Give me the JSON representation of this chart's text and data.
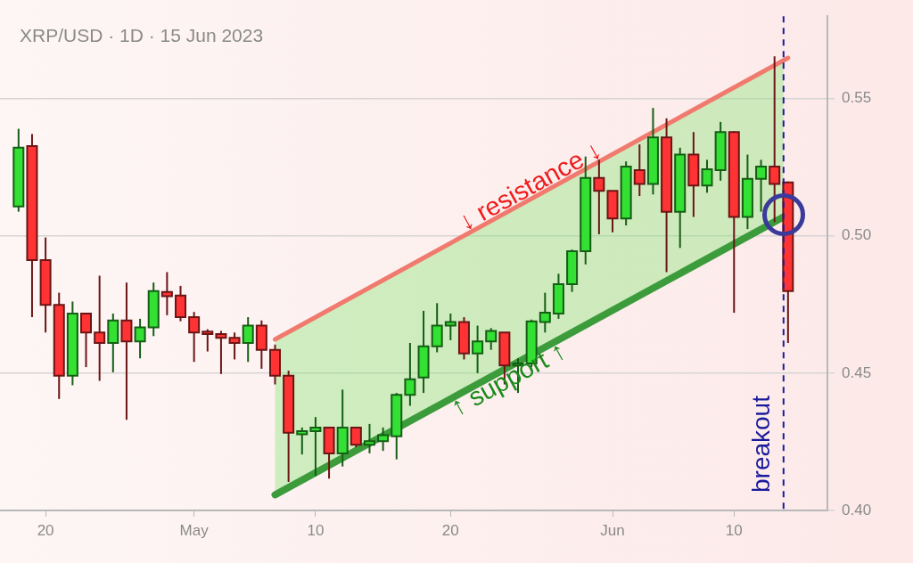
{
  "chart_data": {
    "type": "candlestick",
    "title": "XRP/USD · 1D · 15 Jun 2023",
    "x": [
      "2023-04-18",
      "2023-04-19",
      "2023-04-20",
      "2023-04-21",
      "2023-04-22",
      "2023-04-23",
      "2023-04-24",
      "2023-04-25",
      "2023-04-26",
      "2023-04-27",
      "2023-04-28",
      "2023-04-29",
      "2023-04-30",
      "2023-05-01",
      "2023-05-02",
      "2023-05-03",
      "2023-05-04",
      "2023-05-05",
      "2023-05-06",
      "2023-05-07",
      "2023-05-08",
      "2023-05-09",
      "2023-05-10",
      "2023-05-11",
      "2023-05-12",
      "2023-05-13",
      "2023-05-14",
      "2023-05-15",
      "2023-05-16",
      "2023-05-17",
      "2023-05-18",
      "2023-05-19",
      "2023-05-20",
      "2023-05-21",
      "2023-05-22",
      "2023-05-23",
      "2023-05-24",
      "2023-05-25",
      "2023-05-26",
      "2023-05-27",
      "2023-05-28",
      "2023-05-29",
      "2023-05-30",
      "2023-05-31",
      "2023-06-01",
      "2023-06-02",
      "2023-06-03",
      "2023-06-04",
      "2023-06-05",
      "2023-06-06",
      "2023-06-07",
      "2023-06-08",
      "2023-06-09",
      "2023-06-10",
      "2023-06-11",
      "2023-06-12",
      "2023-06-13",
      "2023-06-14"
    ],
    "ohlc": [
      [
        0.5107,
        0.539,
        0.5088,
        0.5321
      ],
      [
        0.5327,
        0.5371,
        0.4704,
        0.4912
      ],
      [
        0.4912,
        0.4994,
        0.4648,
        0.4749
      ],
      [
        0.4749,
        0.4793,
        0.4406,
        0.4491
      ],
      [
        0.4491,
        0.4761,
        0.4456,
        0.4717
      ],
      [
        0.4717,
        0.4717,
        0.4522,
        0.4648
      ],
      [
        0.4648,
        0.4855,
        0.4472,
        0.461
      ],
      [
        0.461,
        0.4717,
        0.4503,
        0.4692
      ],
      [
        0.4692,
        0.483,
        0.433,
        0.4616
      ],
      [
        0.4616,
        0.4698,
        0.4554,
        0.4667
      ],
      [
        0.4667,
        0.483,
        0.4635,
        0.4799
      ],
      [
        0.4796,
        0.4868,
        0.4711,
        0.478
      ],
      [
        0.4783,
        0.4818,
        0.4689,
        0.4704
      ],
      [
        0.4704,
        0.4723,
        0.4541,
        0.4648
      ],
      [
        0.4651,
        0.466,
        0.4579,
        0.4642
      ],
      [
        0.4642,
        0.4654,
        0.4497,
        0.4629
      ],
      [
        0.4629,
        0.4648,
        0.455,
        0.461
      ],
      [
        0.461,
        0.4704,
        0.4541,
        0.4673
      ],
      [
        0.4673,
        0.4692,
        0.4516,
        0.4585
      ],
      [
        0.4585,
        0.4604,
        0.4459,
        0.4491
      ],
      [
        0.4491,
        0.4509,
        0.4104,
        0.4283
      ],
      [
        0.4277,
        0.4302,
        0.4204,
        0.4289
      ],
      [
        0.4289,
        0.434,
        0.4126,
        0.4302
      ],
      [
        0.4302,
        0.4302,
        0.4116,
        0.4208
      ],
      [
        0.4208,
        0.444,
        0.416,
        0.4302
      ],
      [
        0.4302,
        0.4302,
        0.423,
        0.4239
      ],
      [
        0.4239,
        0.4315,
        0.4208,
        0.4252
      ],
      [
        0.4252,
        0.4302,
        0.4217,
        0.4274
      ],
      [
        0.427,
        0.4428,
        0.4186,
        0.4421
      ],
      [
        0.4421,
        0.461,
        0.4381,
        0.4478
      ],
      [
        0.4484,
        0.4727,
        0.4428,
        0.4598
      ],
      [
        0.4598,
        0.4755,
        0.4576,
        0.4673
      ],
      [
        0.4673,
        0.4717,
        0.462,
        0.4686
      ],
      [
        0.4686,
        0.4704,
        0.455,
        0.4572
      ],
      [
        0.4572,
        0.4673,
        0.45,
        0.4616
      ],
      [
        0.4616,
        0.4664,
        0.4585,
        0.4654
      ],
      [
        0.4648,
        0.4648,
        0.4459,
        0.4528
      ],
      [
        0.4528,
        0.4554,
        0.4428,
        0.4535
      ],
      [
        0.4535,
        0.4695,
        0.4522,
        0.4689
      ],
      [
        0.4686,
        0.4793,
        0.4648,
        0.472
      ],
      [
        0.4717,
        0.4862,
        0.4698,
        0.4824
      ],
      [
        0.4824,
        0.495,
        0.4796,
        0.4944
      ],
      [
        0.4944,
        0.5289,
        0.4896,
        0.5211
      ],
      [
        0.5211,
        0.5277,
        0.5006,
        0.5164
      ],
      [
        0.5164,
        0.5164,
        0.5013,
        0.5063
      ],
      [
        0.5063,
        0.5271,
        0.5038,
        0.5252
      ],
      [
        0.5239,
        0.5333,
        0.5145,
        0.5189
      ],
      [
        0.5189,
        0.5466,
        0.5151,
        0.5359
      ],
      [
        0.5359,
        0.5428,
        0.4868,
        0.5088
      ],
      [
        0.5088,
        0.5321,
        0.4956,
        0.5296
      ],
      [
        0.5296,
        0.5378,
        0.5069,
        0.5183
      ],
      [
        0.5183,
        0.5277,
        0.5157,
        0.5243
      ],
      [
        0.5239,
        0.5415,
        0.5201,
        0.5378
      ],
      [
        0.5378,
        0.5381,
        0.472,
        0.5069
      ],
      [
        0.5069,
        0.5296,
        0.5025,
        0.5208
      ],
      [
        0.5208,
        0.5277,
        0.5088,
        0.5252
      ],
      [
        0.5252,
        0.5654,
        0.505,
        0.5189
      ],
      [
        0.5195,
        0.5198,
        0.461,
        0.4799
      ]
    ],
    "colors": [
      "#33e033",
      "#ff3333",
      "#ff3333",
      "#ff3333",
      "#33e033",
      "#ff3333",
      "#ff3333",
      "#33e033",
      "#ff3333",
      "#33e033",
      "#33e033",
      "#ff3333",
      "#ff3333",
      "#ff3333",
      "#ff3333",
      "#ff3333",
      "#ff3333",
      "#33e033",
      "#ff3333",
      "#ff3333",
      "#ff3333",
      "#33e033",
      "#33e033",
      "#ff3333",
      "#33e033",
      "#ff3333",
      "#33e033",
      "#33e033",
      "#33e033",
      "#33e033",
      "#33e033",
      "#33e033",
      "#33e033",
      "#ff3333",
      "#33e033",
      "#33e033",
      "#ff3333",
      "#33e033",
      "#33e033",
      "#33e033",
      "#33e033",
      "#33e033",
      "#33e033",
      "#ff3333",
      "#ff3333",
      "#33e033",
      "#ff3333",
      "#33e033",
      "#ff3333",
      "#33e033",
      "#ff3333",
      "#33e033",
      "#33e033",
      "#ff3333",
      "#33e033",
      "#33e033",
      "#ff3333",
      "#ff3333"
    ],
    "series": [
      {
        "type": "line",
        "name": "↓ resistance ↓",
        "color": "#f07a6e",
        "x": [
          "2023-05-07",
          "2023-06-14"
        ],
        "values": [
          0.4623,
          0.5648
        ]
      },
      {
        "type": "line",
        "name": "↑ support ↑",
        "color": "#3c9c3c",
        "x": [
          "2023-05-07",
          "2023-06-13T16:00"
        ],
        "values": [
          0.4057,
          0.5069
        ],
        "lower": [
          0.4057,
          0.5069
        ],
        "upper": [
          0.4623,
          0.5639
        ]
      }
    ],
    "ref_lines": [
      {
        "axis": "x",
        "value": "2023-06-13T16:00",
        "label": "breakout",
        "color": "#1a1a9c",
        "line_style": "dashed"
      }
    ],
    "xlim": [
      "2023-04-16T15:00",
      "2023-06-16T22:00"
    ],
    "xticks": [
      {
        "value": "2023-04-20",
        "label": "20"
      },
      {
        "value": "2023-05-01",
        "label": "May"
      },
      {
        "value": "2023-05-10",
        "label": "10"
      },
      {
        "value": "2023-05-20",
        "label": "20"
      },
      {
        "value": "2023-06-01",
        "label": "Jun"
      },
      {
        "value": "2023-06-10",
        "label": "10"
      }
    ],
    "ylim": [
      0.4,
      0.58
    ],
    "yticks": [
      {
        "value": 0.4,
        "label": "0.40"
      },
      {
        "value": 0.45,
        "label": "0.45"
      },
      {
        "value": 0.5,
        "label": "0.50"
      },
      {
        "value": 0.55,
        "label": "0.55"
      }
    ],
    "grid": "y",
    "legend": false
  }
}
